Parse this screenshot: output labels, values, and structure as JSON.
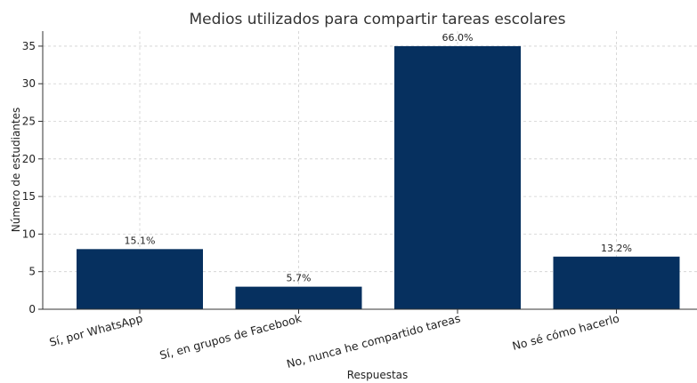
{
  "chart_data": {
    "type": "bar",
    "title": "Medios utilizados para compartir tareas escolares",
    "xlabel": "Respuestas",
    "ylabel": "Número de estudiantes",
    "categories": [
      "Sí, por WhatsApp",
      "Sí, en grupos de Facebook",
      "No, nunca he compartido tareas",
      "No sé cómo hacerlo"
    ],
    "values": [
      8,
      3,
      35,
      7
    ],
    "data_labels": [
      "15.1%",
      "5.7%",
      "66.0%",
      "13.2%"
    ],
    "ylim": [
      0,
      37
    ],
    "yticks": [
      0,
      5,
      10,
      15,
      20,
      25,
      30,
      35
    ],
    "grid": true,
    "bar_color": "#06305f"
  }
}
